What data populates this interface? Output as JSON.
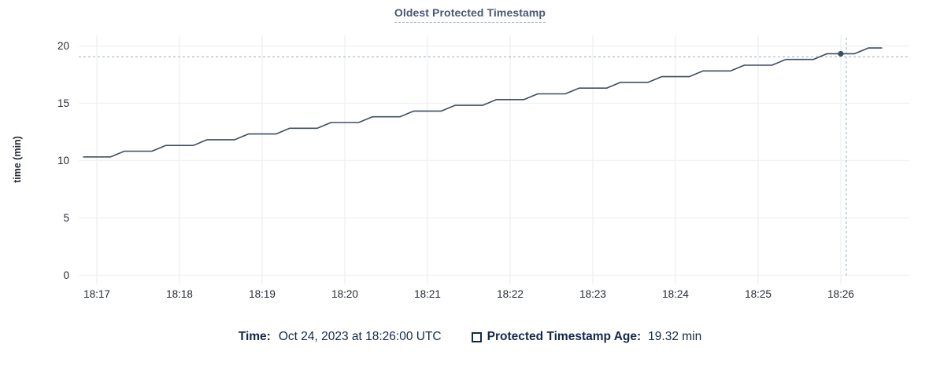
{
  "chart": {
    "title": "Oldest Protected Timestamp",
    "ylabel": "time (min)"
  },
  "legend": {
    "time_label": "Time:",
    "time_value": "Oct 24, 2023 at 18:26:00 UTC",
    "series_label": "Protected Timestamp Age:",
    "series_value": "19.32 min"
  },
  "colors": {
    "title": "#475872",
    "title_underline": "#9fb0c1",
    "series_line": "#3f4d63",
    "grid": "#f0f1f3",
    "tick_text": "#242b35",
    "crosshair": "#a9bdcc",
    "legend_text": "#13294a"
  },
  "chart_data": {
    "type": "line",
    "title": "Oldest Protected Timestamp",
    "xlabel": "",
    "ylabel": "time (min)",
    "ylim": [
      0,
      20
    ],
    "yticks": [
      0,
      5,
      10,
      15,
      20
    ],
    "xticks": [
      "18:17",
      "18:18",
      "18:19",
      "18:20",
      "18:21",
      "18:22",
      "18:23",
      "18:24",
      "18:25",
      "18:26"
    ],
    "grid": true,
    "legend_position": "bottom",
    "series": [
      {
        "name": "Protected Timestamp Age",
        "unit": "min",
        "start_time": "18:16:50",
        "interval_seconds": 10,
        "values": [
          10.32,
          10.32,
          10.32,
          10.82,
          10.82,
          10.82,
          11.32,
          11.32,
          11.32,
          11.82,
          11.82,
          11.82,
          12.32,
          12.32,
          12.32,
          12.82,
          12.82,
          12.82,
          13.32,
          13.32,
          13.32,
          13.82,
          13.82,
          13.82,
          14.32,
          14.32,
          14.32,
          14.82,
          14.82,
          14.82,
          15.32,
          15.32,
          15.32,
          15.82,
          15.82,
          15.82,
          16.32,
          16.32,
          16.32,
          16.82,
          16.82,
          16.82,
          17.32,
          17.32,
          17.32,
          17.82,
          17.82,
          17.82,
          18.32,
          18.32,
          18.32,
          18.82,
          18.82,
          18.82,
          19.32,
          19.32,
          19.32,
          19.82,
          19.82
        ]
      }
    ],
    "hover_point": {
      "time": "18:26:00",
      "value": 19.32,
      "date": "Oct 24, 2023"
    },
    "crosshair": {
      "time": "18:26:04",
      "value": 19.05
    }
  }
}
